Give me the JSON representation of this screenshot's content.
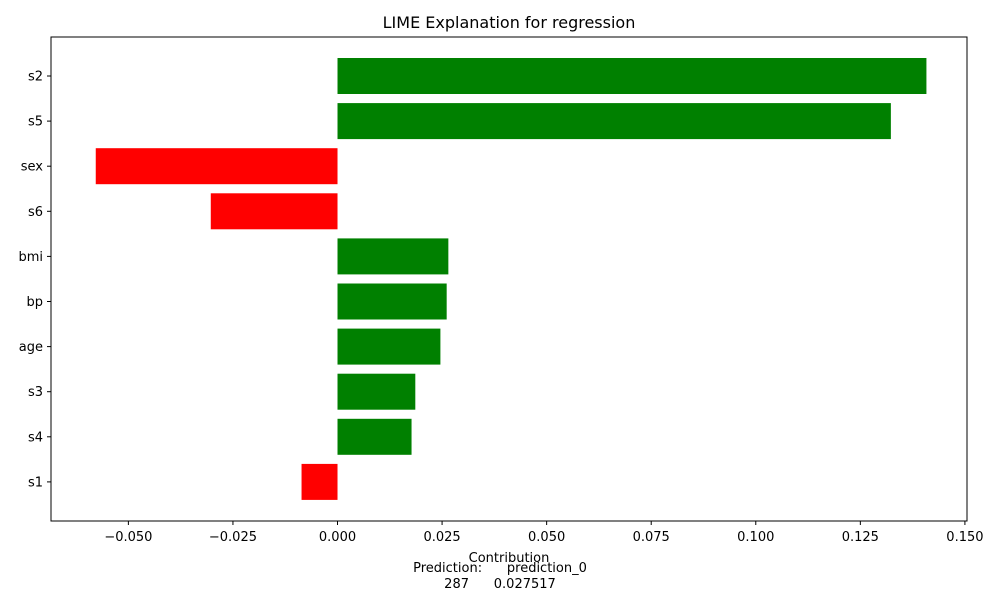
{
  "chart_data": {
    "type": "bar",
    "orientation": "horizontal",
    "title": "LIME Explanation for regression",
    "xlabel": "Contribution",
    "ylabel": "",
    "xlim": [
      -0.0685,
      0.1505
    ],
    "xticks": [
      -0.05,
      -0.025,
      0.0,
      0.025,
      0.05,
      0.075,
      0.1,
      0.125,
      0.15
    ],
    "xtick_labels": [
      "−0.050",
      "−0.025",
      "0.000",
      "0.025",
      "0.050",
      "0.075",
      "0.100",
      "0.125",
      "0.150"
    ],
    "categories": [
      "s2",
      "s5",
      "sex",
      "s6",
      "bmi",
      "bp",
      "age",
      "s3",
      "s4",
      "s1"
    ],
    "values": [
      0.1408,
      0.1323,
      -0.0578,
      -0.0303,
      0.0265,
      0.0261,
      0.0246,
      0.0186,
      0.0177,
      -0.0086
    ],
    "colors": {
      "positive": "#008000",
      "negative": "#ff0000"
    },
    "grid": false,
    "legend": "none"
  },
  "footer": {
    "line1": "Prediction:      prediction_0",
    "line2": "287      0.027517"
  }
}
